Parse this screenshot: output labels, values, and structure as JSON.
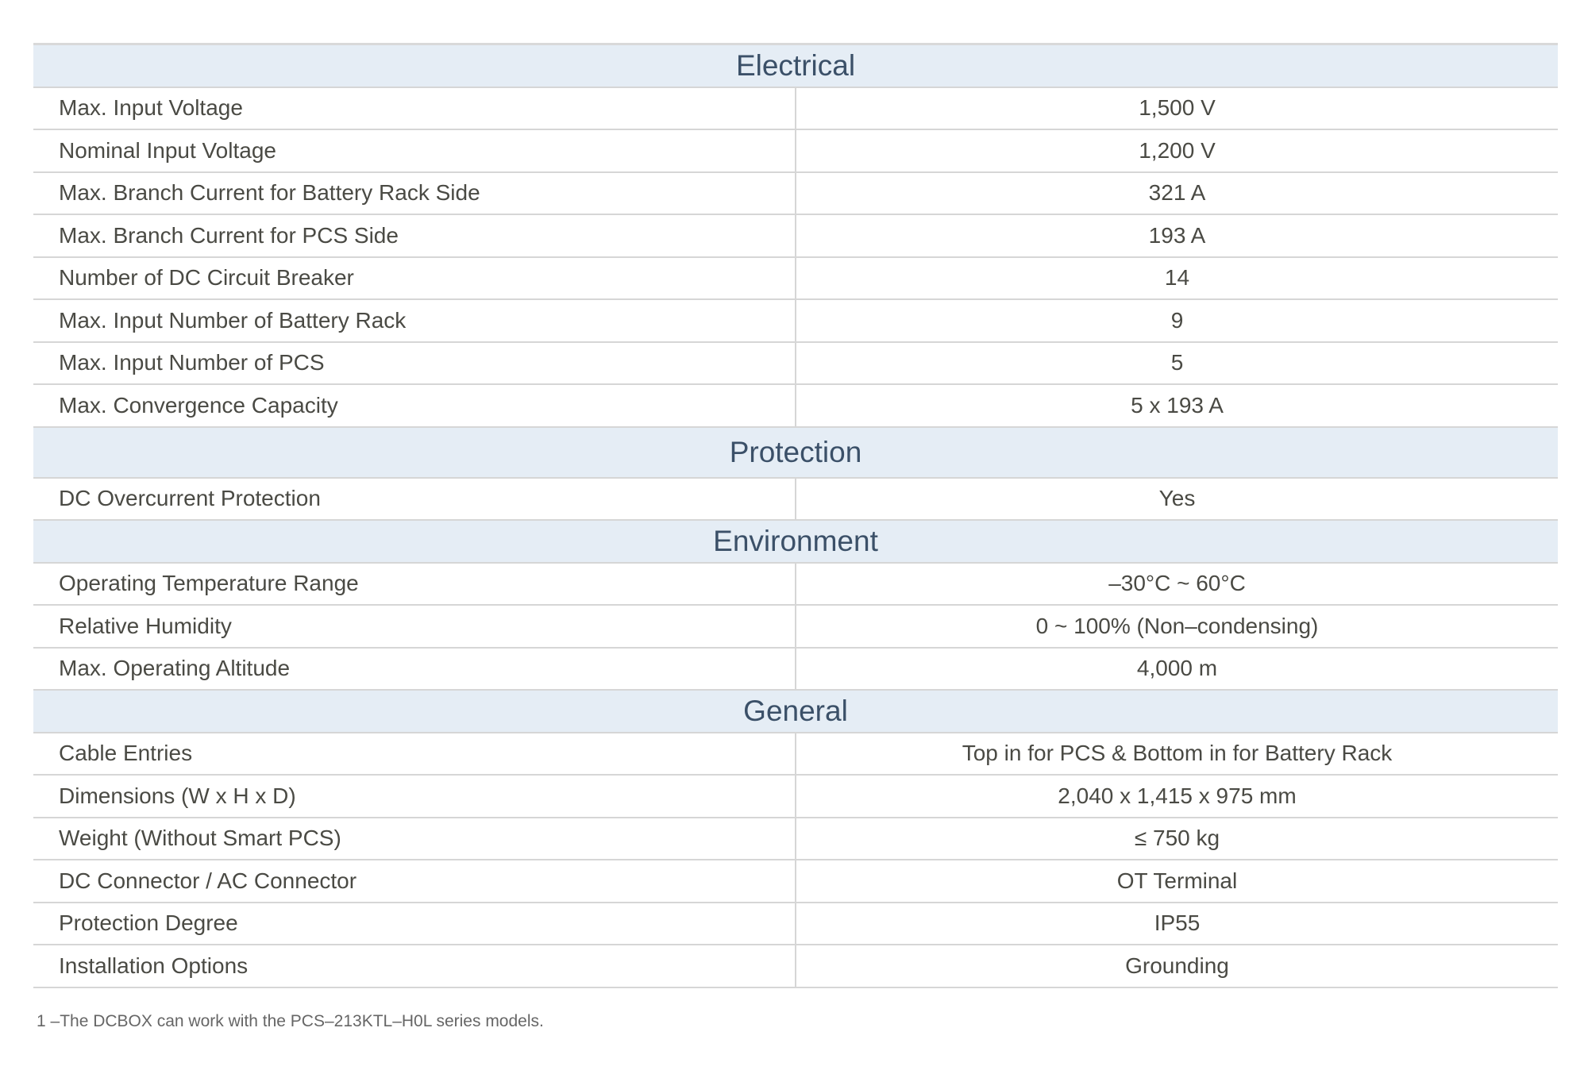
{
  "sections": [
    {
      "title": "Electrical",
      "rows": [
        {
          "label": "Max. Input Voltage",
          "value": "1,500 V"
        },
        {
          "label": "Nominal Input Voltage",
          "value": "1,200 V"
        },
        {
          "label": "Max. Branch Current for Battery Rack Side",
          "value": "321 A"
        },
        {
          "label": "Max. Branch Current for PCS Side",
          "value": "193 A"
        },
        {
          "label": "Number of DC Circuit Breaker",
          "value": "14"
        },
        {
          "label": "Max. Input Number of Battery Rack",
          "value": "9"
        },
        {
          "label": "Max. Input Number of PCS",
          "value": "5"
        },
        {
          "label": "Max. Convergence Capacity",
          "value": "5 x 193 A"
        }
      ]
    },
    {
      "title": "Protection",
      "rows": [
        {
          "label": "DC Overcurrent Protection",
          "value": "Yes"
        }
      ]
    },
    {
      "title": "Environment",
      "rows": [
        {
          "label": "Operating Temperature Range",
          "value": "–30°C ~ 60°C"
        },
        {
          "label": "Relative Humidity",
          "value": "0 ~ 100% (Non–condensing)"
        },
        {
          "label": "Max. Operating Altitude",
          "value": "4,000 m"
        }
      ]
    },
    {
      "title": "General",
      "rows": [
        {
          "label": "Cable Entries",
          "value": "Top in for PCS & Bottom in for Battery Rack"
        },
        {
          "label": "Dimensions (W x H x D)",
          "value": "2,040 x 1,415 x 975 mm"
        },
        {
          "label": "Weight (Without Smart PCS)",
          "value": "≤ 750 kg"
        },
        {
          "label": "DC Connector / AC Connector",
          "value": "OT Terminal"
        },
        {
          "label": "Protection Degree",
          "value": "IP55"
        },
        {
          "label": "Installation Options",
          "value": "Grounding"
        }
      ]
    }
  ],
  "footnote": "1 –The DCBOX can work with the PCS–213KTL–H0L series models.",
  "colors": {
    "section_bg": "#e5edf5",
    "section_text": "#3b5068",
    "border": "#d6d6d6"
  }
}
